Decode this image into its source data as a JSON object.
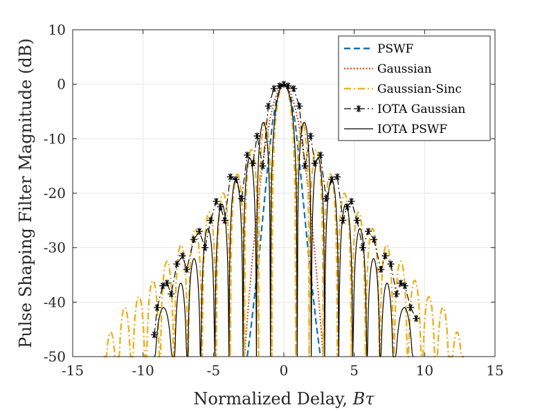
{
  "chart_data": {
    "type": "line",
    "title": "",
    "xlabel": "Normalized Delay, ",
    "xlabel_symbol": "Bτ",
    "ylabel": "Pulse Shaping Filter Magnitude (dB)",
    "xlim": [
      -15,
      15
    ],
    "ylim": [
      -50,
      10
    ],
    "xticks": [
      "-15",
      "-10",
      "-5",
      "0",
      "5",
      "10",
      "15"
    ],
    "yticks": [
      "10",
      "0",
      "-10",
      "-20",
      "-30",
      "-40",
      "-50"
    ],
    "grid": true,
    "legend_position": "top-right",
    "series": [
      {
        "name": "PSWF",
        "color": "#0072BD",
        "style": "dashed",
        "x": [
          -2.6,
          -2.3,
          -2.0,
          -1.7,
          -1.4,
          -1.1,
          -0.8,
          -0.5,
          -0.2,
          0,
          0.2,
          0.5,
          0.8,
          1.1,
          1.4,
          1.7,
          2.0,
          2.3,
          2.6
        ],
        "y": [
          -50,
          -44,
          -37,
          -30,
          -22,
          -14,
          -7,
          -2.5,
          -0.4,
          0,
          -0.4,
          -2.5,
          -7,
          -14,
          -22,
          -30,
          -37,
          -44,
          -50
        ]
      },
      {
        "name": "Gaussian",
        "color": "#D95319",
        "style": "dotted",
        "x": [
          -2.8,
          -2.5,
          -2.2,
          -1.9,
          -1.6,
          -1.3,
          -1.0,
          -0.7,
          -0.4,
          -0.2,
          0,
          0.2,
          0.4,
          0.7,
          1.0,
          1.3,
          1.6,
          1.9,
          2.2,
          2.5,
          2.8
        ],
        "y": [
          -50,
          -40,
          -31,
          -23,
          -16.5,
          -11,
          -6.5,
          -3.2,
          -1.1,
          -0.3,
          0,
          -0.3,
          -1.1,
          -3.2,
          -6.5,
          -11,
          -16.5,
          -23,
          -31,
          -40,
          -50
        ]
      },
      {
        "name": "Gaussian-Sinc",
        "color": "#EDB120",
        "style": "dashdot",
        "peaks_x": [
          0,
          1.3,
          2.3,
          3.3,
          4.3,
          5.3,
          6.3,
          7.3,
          8.3,
          9.3,
          10.3,
          11.3,
          12.3
        ],
        "peaks_y": [
          0,
          -7,
          -12,
          -16.5,
          -20,
          -23.5,
          -26.5,
          -29.5,
          -32.5,
          -36,
          -39,
          -41,
          -45.5
        ],
        "nulls_x": [
          0.85,
          1.8,
          2.8,
          3.8,
          4.8,
          5.8,
          6.8,
          7.8,
          8.8,
          9.8,
          10.8,
          11.8,
          12.8
        ],
        "symmetric": true
      },
      {
        "name": "IOTA Gaussian",
        "color": "#000000",
        "style": "dashdot",
        "marker": "asterisk",
        "x": [
          -9.2,
          -9.0,
          -8.6,
          -8.3,
          -8.0,
          -7.6,
          -7.2,
          -6.9,
          -6.4,
          -6.0,
          -5.6,
          -5.2,
          -4.8,
          -4.5,
          -4.2,
          -3.8,
          -3.4,
          -3.0,
          -2.6,
          -2.2,
          -1.9,
          -1.5,
          -1.1,
          -0.7,
          -0.3,
          0,
          0.3,
          0.7,
          1.1,
          1.5,
          1.9,
          2.2,
          2.6,
          3.0,
          3.4,
          3.8,
          4.2,
          4.5,
          4.8,
          5.2,
          5.6,
          6.0,
          6.4,
          6.9,
          7.2,
          7.6,
          8.0,
          8.3,
          8.6,
          9.0,
          9.4
        ],
        "y": [
          -46,
          -41,
          -37,
          -36.5,
          -38.5,
          -33,
          -31.5,
          -34,
          -28.5,
          -27,
          -30,
          -25,
          -21.5,
          -22.5,
          -25,
          -17,
          -17.5,
          -21,
          -13,
          -14.5,
          -9.5,
          -15,
          -4,
          -0.8,
          -0.3,
          0,
          -0.3,
          -0.8,
          -4,
          -15,
          -9.5,
          -14.5,
          -13,
          -21,
          -17.5,
          -17,
          -25,
          -22.5,
          -21.5,
          -25,
          -30,
          -27,
          -28.5,
          -34,
          -31.5,
          -33,
          -38.5,
          -36.5,
          -37,
          -41,
          -43
        ]
      },
      {
        "name": "IOTA PSWF",
        "color": "#000000",
        "style": "solid",
        "peaks_x": [
          0,
          1.5,
          2.4,
          3.4,
          4.4,
          5.4,
          6.4,
          7.3,
          8.3
        ],
        "peaks_y": [
          0,
          -7,
          -13.5,
          -17.5,
          -22,
          -26.5,
          -32,
          -36.5,
          -41
        ],
        "nulls_x": [
          0.95,
          1.95,
          2.9,
          3.9,
          4.9,
          5.9,
          6.85,
          7.8,
          9.3
        ],
        "symmetric": true
      }
    ]
  }
}
